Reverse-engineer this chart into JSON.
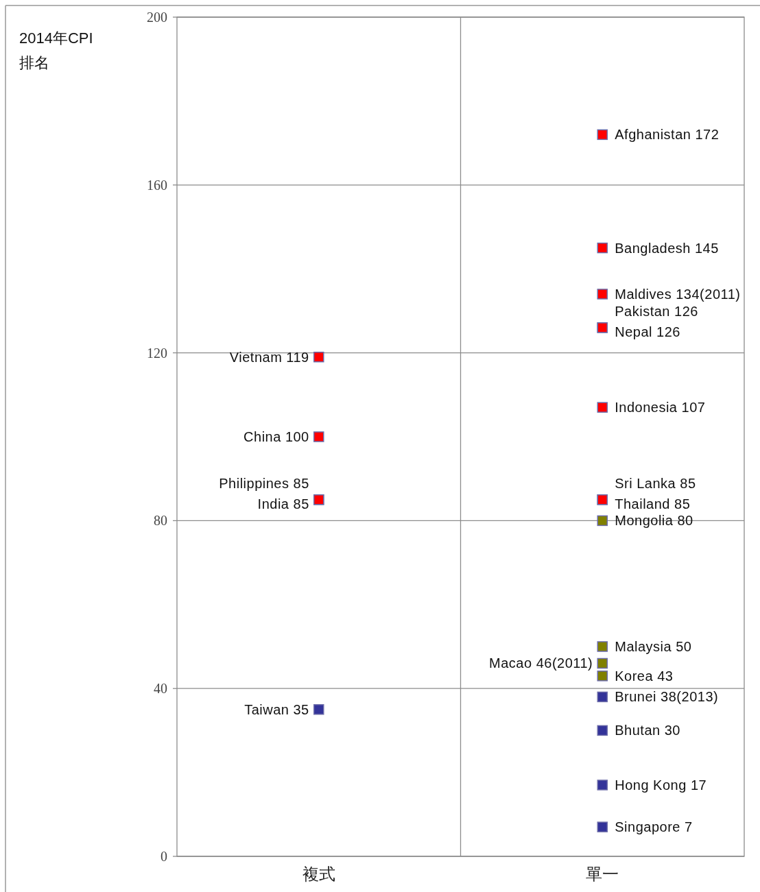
{
  "chart_data": {
    "type": "scatter",
    "ylabel": "2014年CPI\n排名",
    "categories": [
      "複式",
      "單一"
    ],
    "ylim": [
      0,
      200
    ],
    "yticks": [
      0,
      40,
      80,
      120,
      160,
      200
    ],
    "grid": true,
    "marker": "square",
    "series": [
      {
        "x": [
          "複式",
          "複式",
          "複式",
          "複式",
          "複式",
          "單一",
          "單一",
          "單一",
          "單一",
          "單一",
          "單一",
          "單一",
          "單一",
          "單一",
          "單一",
          "單一",
          "單一",
          "單一",
          "單一",
          "單一",
          "單一"
        ],
        "values": [
          119,
          100,
          85,
          85,
          35,
          172,
          145,
          134,
          126,
          126,
          107,
          85,
          85,
          80,
          50,
          46,
          43,
          38,
          30,
          17,
          7
        ],
        "colors": [
          "#ff0000",
          "#ff0000",
          "#ff0000",
          "#ff0000",
          "#333399",
          "#ff0000",
          "#ff0000",
          "#ff0000",
          "#ff0000",
          "#ff0000",
          "#ff0000",
          "#ff0000",
          "#ff0000",
          "#808000",
          "#808000",
          "#808000",
          "#808000",
          "#333399",
          "#333399",
          "#333399",
          "#333399"
        ],
        "value_labels": [
          "Vietnam 119",
          "China 100",
          "Philippines 85",
          "India 85",
          "Taiwan  35",
          "Afghanistan 172",
          "Bangladesh 145",
          "Maldives 134(2011)",
          "Pakistan 126",
          "Nepal 126",
          "Indonesia 107",
          "Sri Lanka 85",
          "Thailand 85",
          "Mongolia 80",
          "Malaysia 50",
          "Macao 46(2011)",
          "Korea 43",
          "Brunei 38(2013)",
          "Bhutan 30",
          "Hong Kong 17",
          "Singapore 7"
        ]
      }
    ]
  }
}
